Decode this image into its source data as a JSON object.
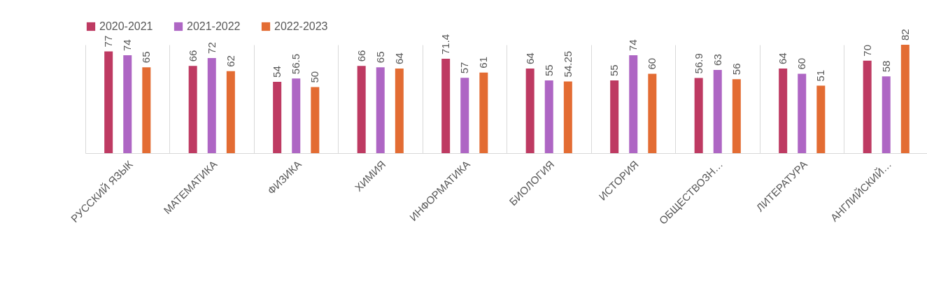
{
  "chart_data": {
    "type": "bar",
    "categories": [
      "РУССКИЙ ЯЗЫК",
      "МАТЕМАТИКА",
      "ФИЗИКА",
      "ХИМИЯ",
      "ИНФОРМАТИКА",
      "БИОЛОГИЯ",
      "ИСТОРИЯ",
      "ОБЩЕСТВОЗН…",
      "ЛИТЕРАТУРА",
      "АНГЛИЙСКИЙ…"
    ],
    "series": [
      {
        "name": "2020-2021",
        "color": "#be3a62",
        "values": [
          77,
          66,
          54,
          66,
          71.4,
          64,
          55,
          56.9,
          64,
          70
        ]
      },
      {
        "name": "2021-2022",
        "color": "#ae66c4",
        "values": [
          74,
          72,
          56.5,
          65,
          57,
          55,
          74,
          63,
          60,
          58
        ]
      },
      {
        "name": "2022-2023",
        "color": "#e36c33",
        "values": [
          65,
          62,
          50,
          64,
          61,
          54.25,
          60,
          56,
          51,
          82
        ]
      }
    ],
    "data_labels": true,
    "legend": "top",
    "grid": "x"
  }
}
